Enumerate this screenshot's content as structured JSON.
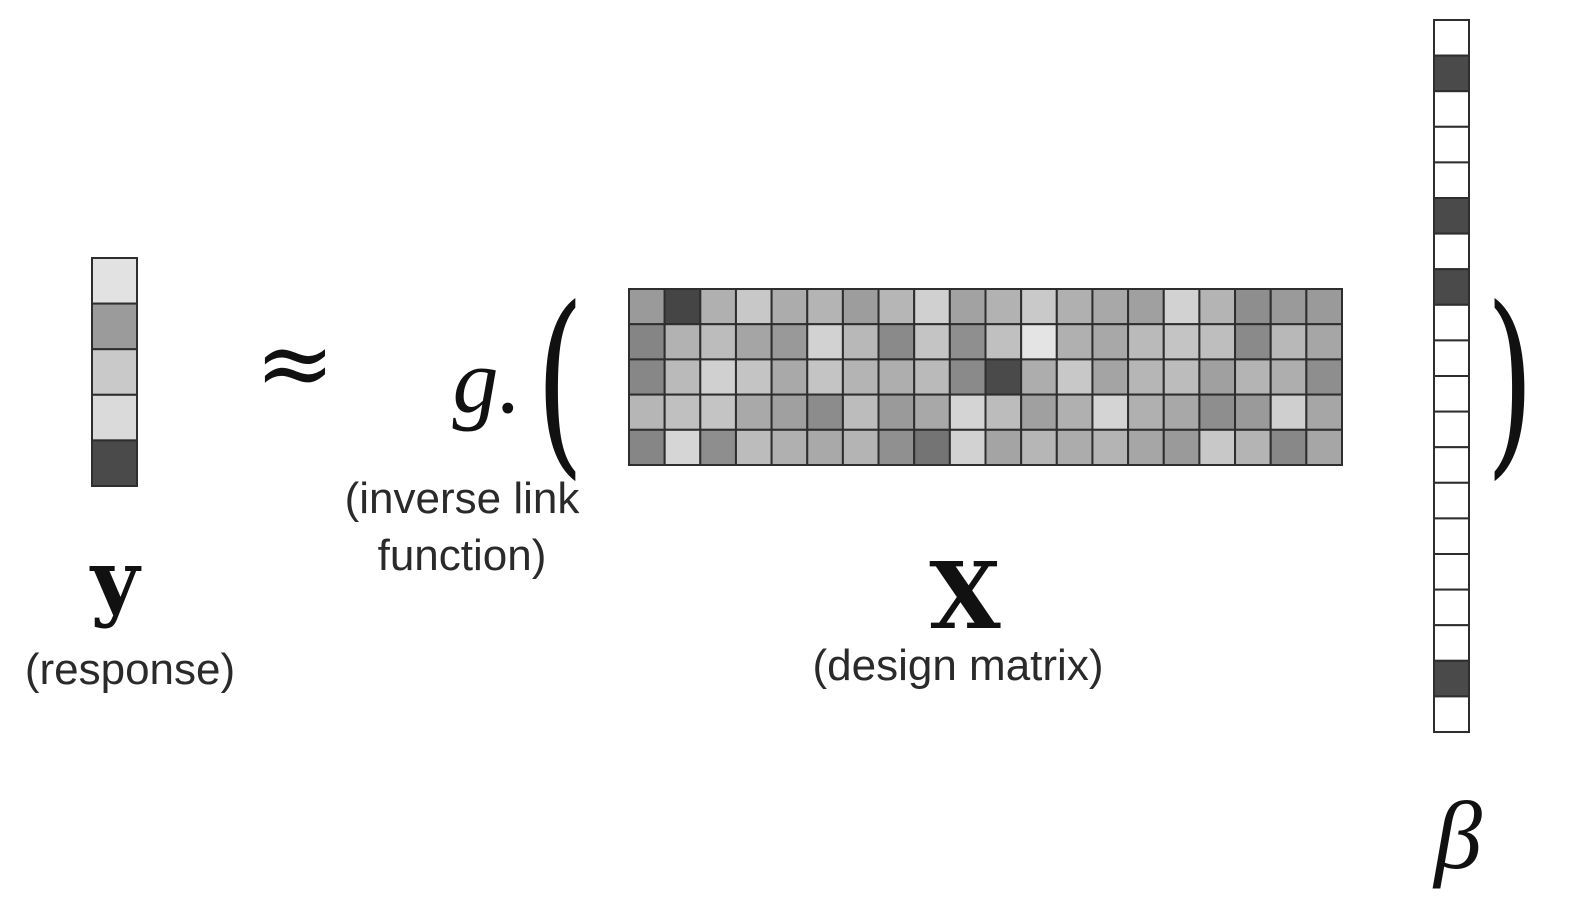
{
  "equation": {
    "approx_symbol": "≈",
    "link_function": "g.",
    "open_paren": "(",
    "close_paren": ")"
  },
  "response": {
    "symbol": "y",
    "label": "(response)",
    "cells": [
      "#e2e2e2",
      "#9b9b9b",
      "#c9c9c9",
      "#dadada",
      "#4a4a4a"
    ]
  },
  "inverse_link": {
    "label_line1": "(inverse link",
    "label_line2": "function)"
  },
  "design_matrix": {
    "symbol": "X",
    "label": "(design matrix)",
    "rows": [
      [
        "#9a9a9a",
        "#454545",
        "#b0b0b0",
        "#c8c8c8",
        "#acacac",
        "#b4b4b4",
        "#9d9d9d",
        "#b6b6b6",
        "#d0d0d0",
        "#a2a2a2",
        "#b2b2b2",
        "#c9c9c9",
        "#b0b0b0",
        "#a8a8a8",
        "#a0a0a0",
        "#d2d2d2",
        "#b4b4b4",
        "#8e8e8e",
        "#9a9a9a",
        "#9a9a9a"
      ],
      [
        "#858585",
        "#b2b2b2",
        "#bcbcbc",
        "#a5a5a5",
        "#999999",
        "#d2d2d2",
        "#b8b8b8",
        "#8a8a8a",
        "#c4c4c4",
        "#8f8f8f",
        "#c0c0c0",
        "#e4e4e4",
        "#b0b0b0",
        "#a8a8a8",
        "#bababa",
        "#c4c4c4",
        "#bebebe",
        "#8a8a8a",
        "#b8b8b8",
        "#a6a6a6"
      ],
      [
        "#878787",
        "#bababa",
        "#d0d0d0",
        "#c4c4c4",
        "#a9a9a9",
        "#c4c4c4",
        "#b4b4b4",
        "#aeaeae",
        "#bababa",
        "#8a8a8a",
        "#4a4a4a",
        "#adadad",
        "#c8c8c8",
        "#a4a4a4",
        "#b6b6b6",
        "#bcbcbc",
        "#a0a0a0",
        "#b4b4b4",
        "#aeaeae",
        "#8e8e8e"
      ],
      [
        "#b6b6b6",
        "#c0c0c0",
        "#c4c4c4",
        "#a9a9a9",
        "#a0a0a0",
        "#8c8c8c",
        "#bcbcbc",
        "#9a9a9a",
        "#a8a8a8",
        "#d4d4d4",
        "#bcbcbc",
        "#a0a0a0",
        "#b0b0b0",
        "#d4d4d4",
        "#b0b0b0",
        "#a8a8a8",
        "#8e8e8e",
        "#9a9a9a",
        "#cfcfcf",
        "#a6a6a6"
      ],
      [
        "#868686",
        "#d6d6d6",
        "#8e8e8e",
        "#bcbcbc",
        "#b0b0b0",
        "#a9a9a9",
        "#b4b4b4",
        "#909090",
        "#747474",
        "#d2d2d2",
        "#a4a4a4",
        "#b6b6b6",
        "#acacac",
        "#b4b4b4",
        "#a6a6a6",
        "#9a9a9a",
        "#c8c8c8",
        "#b4b4b4",
        "#888888",
        "#a6a6a6"
      ]
    ]
  },
  "coefficients": {
    "symbol": "β",
    "cells": [
      "#ffffff",
      "#4a4a4a",
      "#ffffff",
      "#ffffff",
      "#ffffff",
      "#4a4a4a",
      "#ffffff",
      "#4a4a4a",
      "#ffffff",
      "#ffffff",
      "#ffffff",
      "#ffffff",
      "#ffffff",
      "#ffffff",
      "#ffffff",
      "#ffffff",
      "#ffffff",
      "#ffffff",
      "#4a4a4a",
      "#ffffff"
    ]
  }
}
